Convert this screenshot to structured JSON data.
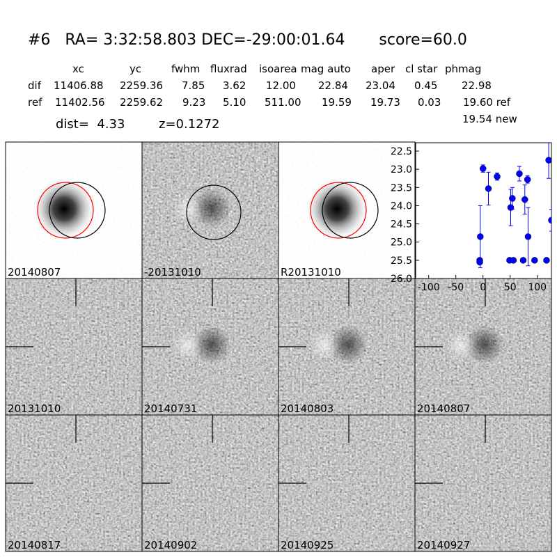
{
  "header": {
    "title": "#6   RA= 3:32:58.803 DEC=-29:00:01.64       score=60.0"
  },
  "table": {
    "columns": [
      "xc",
      "yc",
      "fwhm",
      "fluxrad",
      "isoarea",
      "mag auto",
      "aper",
      "cl star",
      "phmag"
    ],
    "rows": [
      [
        "dif",
        "11406.88",
        "2259.36",
        "7.85",
        "3.62",
        "12.00",
        "22.84",
        "23.04",
        "0.45",
        "22.98"
      ],
      [
        "ref",
        "11402.56",
        "2259.62",
        "9.23",
        "5.10",
        "511.00",
        "19.59",
        "19.73",
        "0.03",
        "19.60 ref"
      ]
    ],
    "extra": "19.54 new",
    "dist": "dist=  4.33",
    "z": "z=0.1272"
  },
  "stamps": [
    {
      "label": "20140807"
    },
    {
      "label": "-20131010"
    },
    {
      "label": "R20131010"
    },
    {
      "label": "20131010"
    },
    {
      "label": "20140731"
    },
    {
      "label": "20140803"
    },
    {
      "label": "20140807",
      "color": "#ff0000"
    },
    {
      "label": "20140817"
    },
    {
      "label": "20140902"
    },
    {
      "label": "20140925"
    },
    {
      "label": "20140927"
    }
  ],
  "chart_data": {
    "type": "scatter",
    "xlim": [
      -124,
      126
    ],
    "xticks": [
      -100,
      -50,
      0,
      50,
      100
    ],
    "ylim": [
      26.0,
      22.27
    ],
    "yticks": [
      22.5,
      {
        "value": 23,
        "label": "23.0"
      },
      23.5,
      {
        "value": 24,
        "label": "24.0"
      },
      24.5,
      {
        "value": 25,
        "label": "25.0"
      },
      25.5,
      {
        "value": 26,
        "label": "26.0"
      }
    ],
    "series": [
      {
        "color": "#0000ff",
        "x": [
          -6,
          -6,
          -5,
          0,
          10,
          26,
          49,
          51,
          54,
          56,
          67,
          74,
          77,
          82,
          83,
          95,
          117,
          121,
          126
        ],
        "values": [
          25.5,
          25.55,
          24.85,
          22.98,
          23.53,
          23.2,
          25.5,
          24.05,
          23.8,
          25.5,
          23.12,
          25.5,
          23.83,
          23.28,
          24.85,
          25.5,
          25.5,
          22.75,
          24.4
        ],
        "errors": [
          0.05,
          0.05,
          0.85,
          0.1,
          0.45,
          0.1,
          0.05,
          0.5,
          0.3,
          0.05,
          0.2,
          0.05,
          0.4,
          0.1,
          0.8,
          0.05,
          0.05,
          0.5,
          0.3
        ]
      }
    ]
  }
}
